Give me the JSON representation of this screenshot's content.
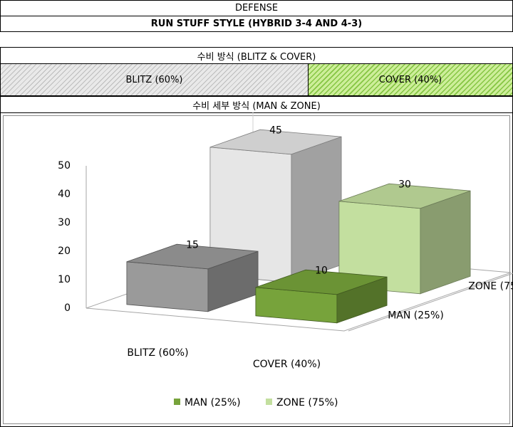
{
  "header": {
    "section": "DEFENSE",
    "style": "RUN STUFF STYLE (HYBRID 3-4 AND 4-3)"
  },
  "defense_method": {
    "title": "수비 방식 (BLITZ & COVER)",
    "segments": [
      {
        "label": "BLITZ (60%)",
        "share": 0.6,
        "color": "#e9e9e9"
      },
      {
        "label": "COVER (40%)",
        "share": 0.4,
        "color": "#cdee9a"
      }
    ]
  },
  "detail_method": {
    "title": "수비 세부 방식 (MAN & ZONE)"
  },
  "chart_data": {
    "type": "bar",
    "subtype": "3d-clustered-column",
    "categories": [
      "BLITZ (60%)",
      "COVER (40%)"
    ],
    "series": [
      {
        "name": "MAN (25%)",
        "values": [
          15,
          10
        ],
        "colors": [
          "#9a9a9a",
          "#77a33b"
        ]
      },
      {
        "name": "ZONE (75%)",
        "values": [
          45,
          30
        ],
        "colors": [
          "#e6e6e6",
          "#c3df9f"
        ]
      }
    ],
    "ylim": [
      0,
      50
    ],
    "yticks": [
      0,
      10,
      20,
      30,
      40,
      50
    ],
    "data_labels": true,
    "legend_position": "bottom",
    "legend_colors": [
      "#77a33b",
      "#c3df9f"
    ]
  }
}
